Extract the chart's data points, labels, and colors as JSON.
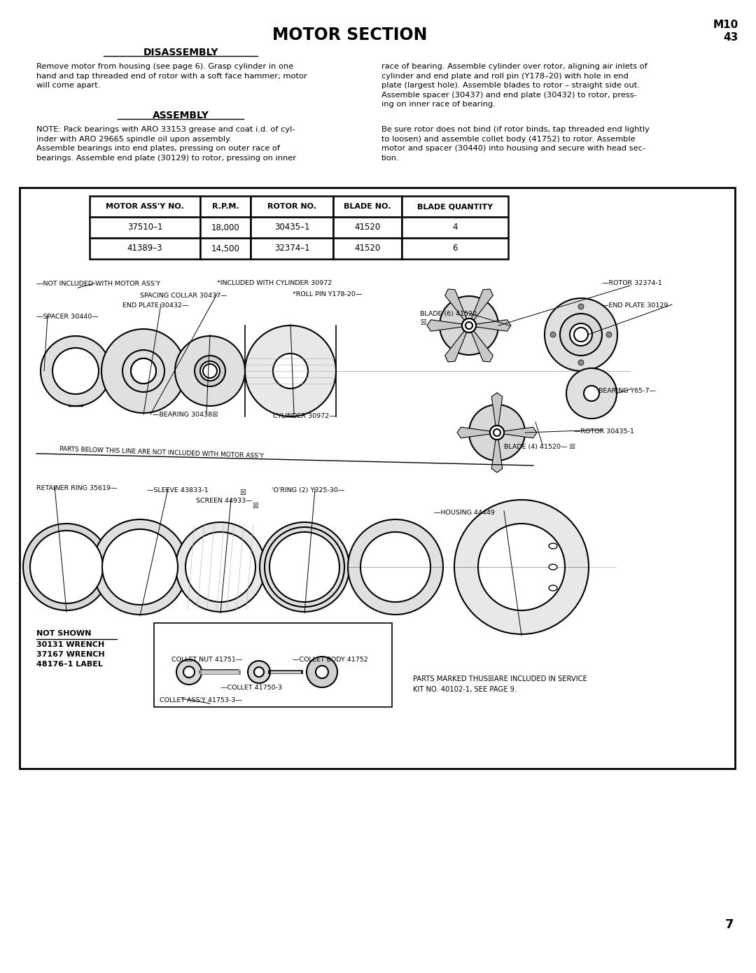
{
  "title": "MOTOR SECTION",
  "title_right_top": "M10",
  "title_right_bottom": "43",
  "section1_header": "DISASSEMBLY",
  "section1_left": "Remove motor from housing (see page 6). Grasp cylinder in one\nhand and tap threaded end of rotor with a soft face hammer; motor\nwill come apart.",
  "section1_right": "race of bearing. Assemble cylinder over rotor, aligning air inlets of\ncylinder and end plate and roll pin (Y178–20) with hole in end\nplate (largest hole). Assemble blades to rotor – straight side out.\nAssemble spacer (30437) and end plate (30432) to rotor, press-\ning on inner race of bearing.",
  "section2_header": "ASSEMBLY",
  "section2_left": "NOTE: Pack bearings with ARO 33153 grease and coat i.d. of cyl-\ninder with ARO 29665 spindle oil upon assembly.\nAssemble bearings into end plates, pressing on outer race of\nbearings. Assemble end plate (30129) to rotor, pressing on inner",
  "section2_right": "Be sure rotor does not bind (if rotor binds, tap threaded end lightly\nto loosen) and assemble collet body (41752) to rotor. Assemble\nmotor and spacer (30440) into housing and secure with head sec-\ntion.",
  "table_headers": [
    "MOTOR ASS'Y NO.",
    "R.P.M.",
    "ROTOR NO.",
    "BLADE NO.",
    "BLADE QUANTITY"
  ],
  "table_rows": [
    [
      "37510–1",
      "18,000",
      "30435–1",
      "41520",
      "4"
    ],
    [
      "41389–3",
      "14,500",
      "32374–1",
      "41520",
      "6"
    ]
  ],
  "not_shown_text": "NOT SHOWN\n30131 WRENCH\n37167 WRENCH\n48176–1 LABEL",
  "parts_marked_text": "PARTS MARKED THUS☒ARE INCLUDED IN SERVICE\nKIT NO. 40102-1, SEE PAGE 9.",
  "page_number": "7",
  "bg_color": "#ffffff",
  "text_color": "#000000"
}
